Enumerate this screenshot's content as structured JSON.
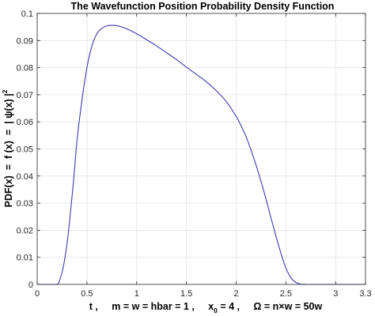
{
  "chart_data": {
    "type": "line",
    "title": "The Wavefunction Position Probability Density Function",
    "xlabel": {
      "parts": [
        "t ,     m = w = hbar = 1 ,     x",
        "0",
        " = 4 ,     Ω = n×w = 50w"
      ]
    },
    "ylabel": {
      "parts": [
        "PDF(x)  =  f (x)  =  | ψ(x) |",
        "2"
      ]
    },
    "xlim": [
      0,
      3.3
    ],
    "ylim": [
      0,
      0.1
    ],
    "x_ticks": [
      0,
      0.5,
      1,
      1.5,
      2,
      2.5,
      3,
      3.3
    ],
    "x_tick_labels": [
      "0",
      "0.5",
      "1",
      "1.5",
      "2",
      "2.5",
      "3",
      "3.3"
    ],
    "y_ticks": [
      0,
      0.01,
      0.02,
      0.03,
      0.04,
      0.05,
      0.06,
      0.07,
      0.08,
      0.09,
      0.1
    ],
    "y_tick_labels": [
      "0",
      "0.01",
      "0.02",
      "0.03",
      "0.04",
      "0.05",
      "0.06",
      "0.07",
      "0.08",
      "0.09",
      "0.1"
    ],
    "grid": true,
    "series": [
      {
        "color": "#3b3bb3",
        "x": [
          0,
          0.1,
          0.2,
          0.23,
          0.26,
          0.3,
          0.33,
          0.37,
          0.4,
          0.45,
          0.5,
          0.55,
          0.6,
          0.65,
          0.7,
          0.75,
          0.8,
          0.85,
          0.9,
          1.0,
          1.1,
          1.2,
          1.3,
          1.4,
          1.5,
          1.6,
          1.7,
          1.8,
          1.9,
          2.0,
          2.05,
          2.1,
          2.15,
          2.2,
          2.25,
          2.3,
          2.35,
          2.4,
          2.45,
          2.5,
          2.55,
          2.6,
          2.65,
          2.7,
          2.75,
          2.8,
          3.0,
          3.3
        ],
        "y": [
          0,
          0,
          0,
          0.002,
          0.006,
          0.015,
          0.025,
          0.04,
          0.053,
          0.068,
          0.08,
          0.088,
          0.0925,
          0.0945,
          0.0954,
          0.0956,
          0.0955,
          0.095,
          0.0943,
          0.0925,
          0.0903,
          0.088,
          0.0855,
          0.083,
          0.0802,
          0.0775,
          0.0748,
          0.0715,
          0.0675,
          0.062,
          0.0585,
          0.0545,
          0.0495,
          0.044,
          0.038,
          0.0315,
          0.0245,
          0.0178,
          0.0115,
          0.006,
          0.0025,
          0.0007,
          0.0001,
          0,
          0,
          0,
          0,
          0
        ]
      }
    ]
  }
}
